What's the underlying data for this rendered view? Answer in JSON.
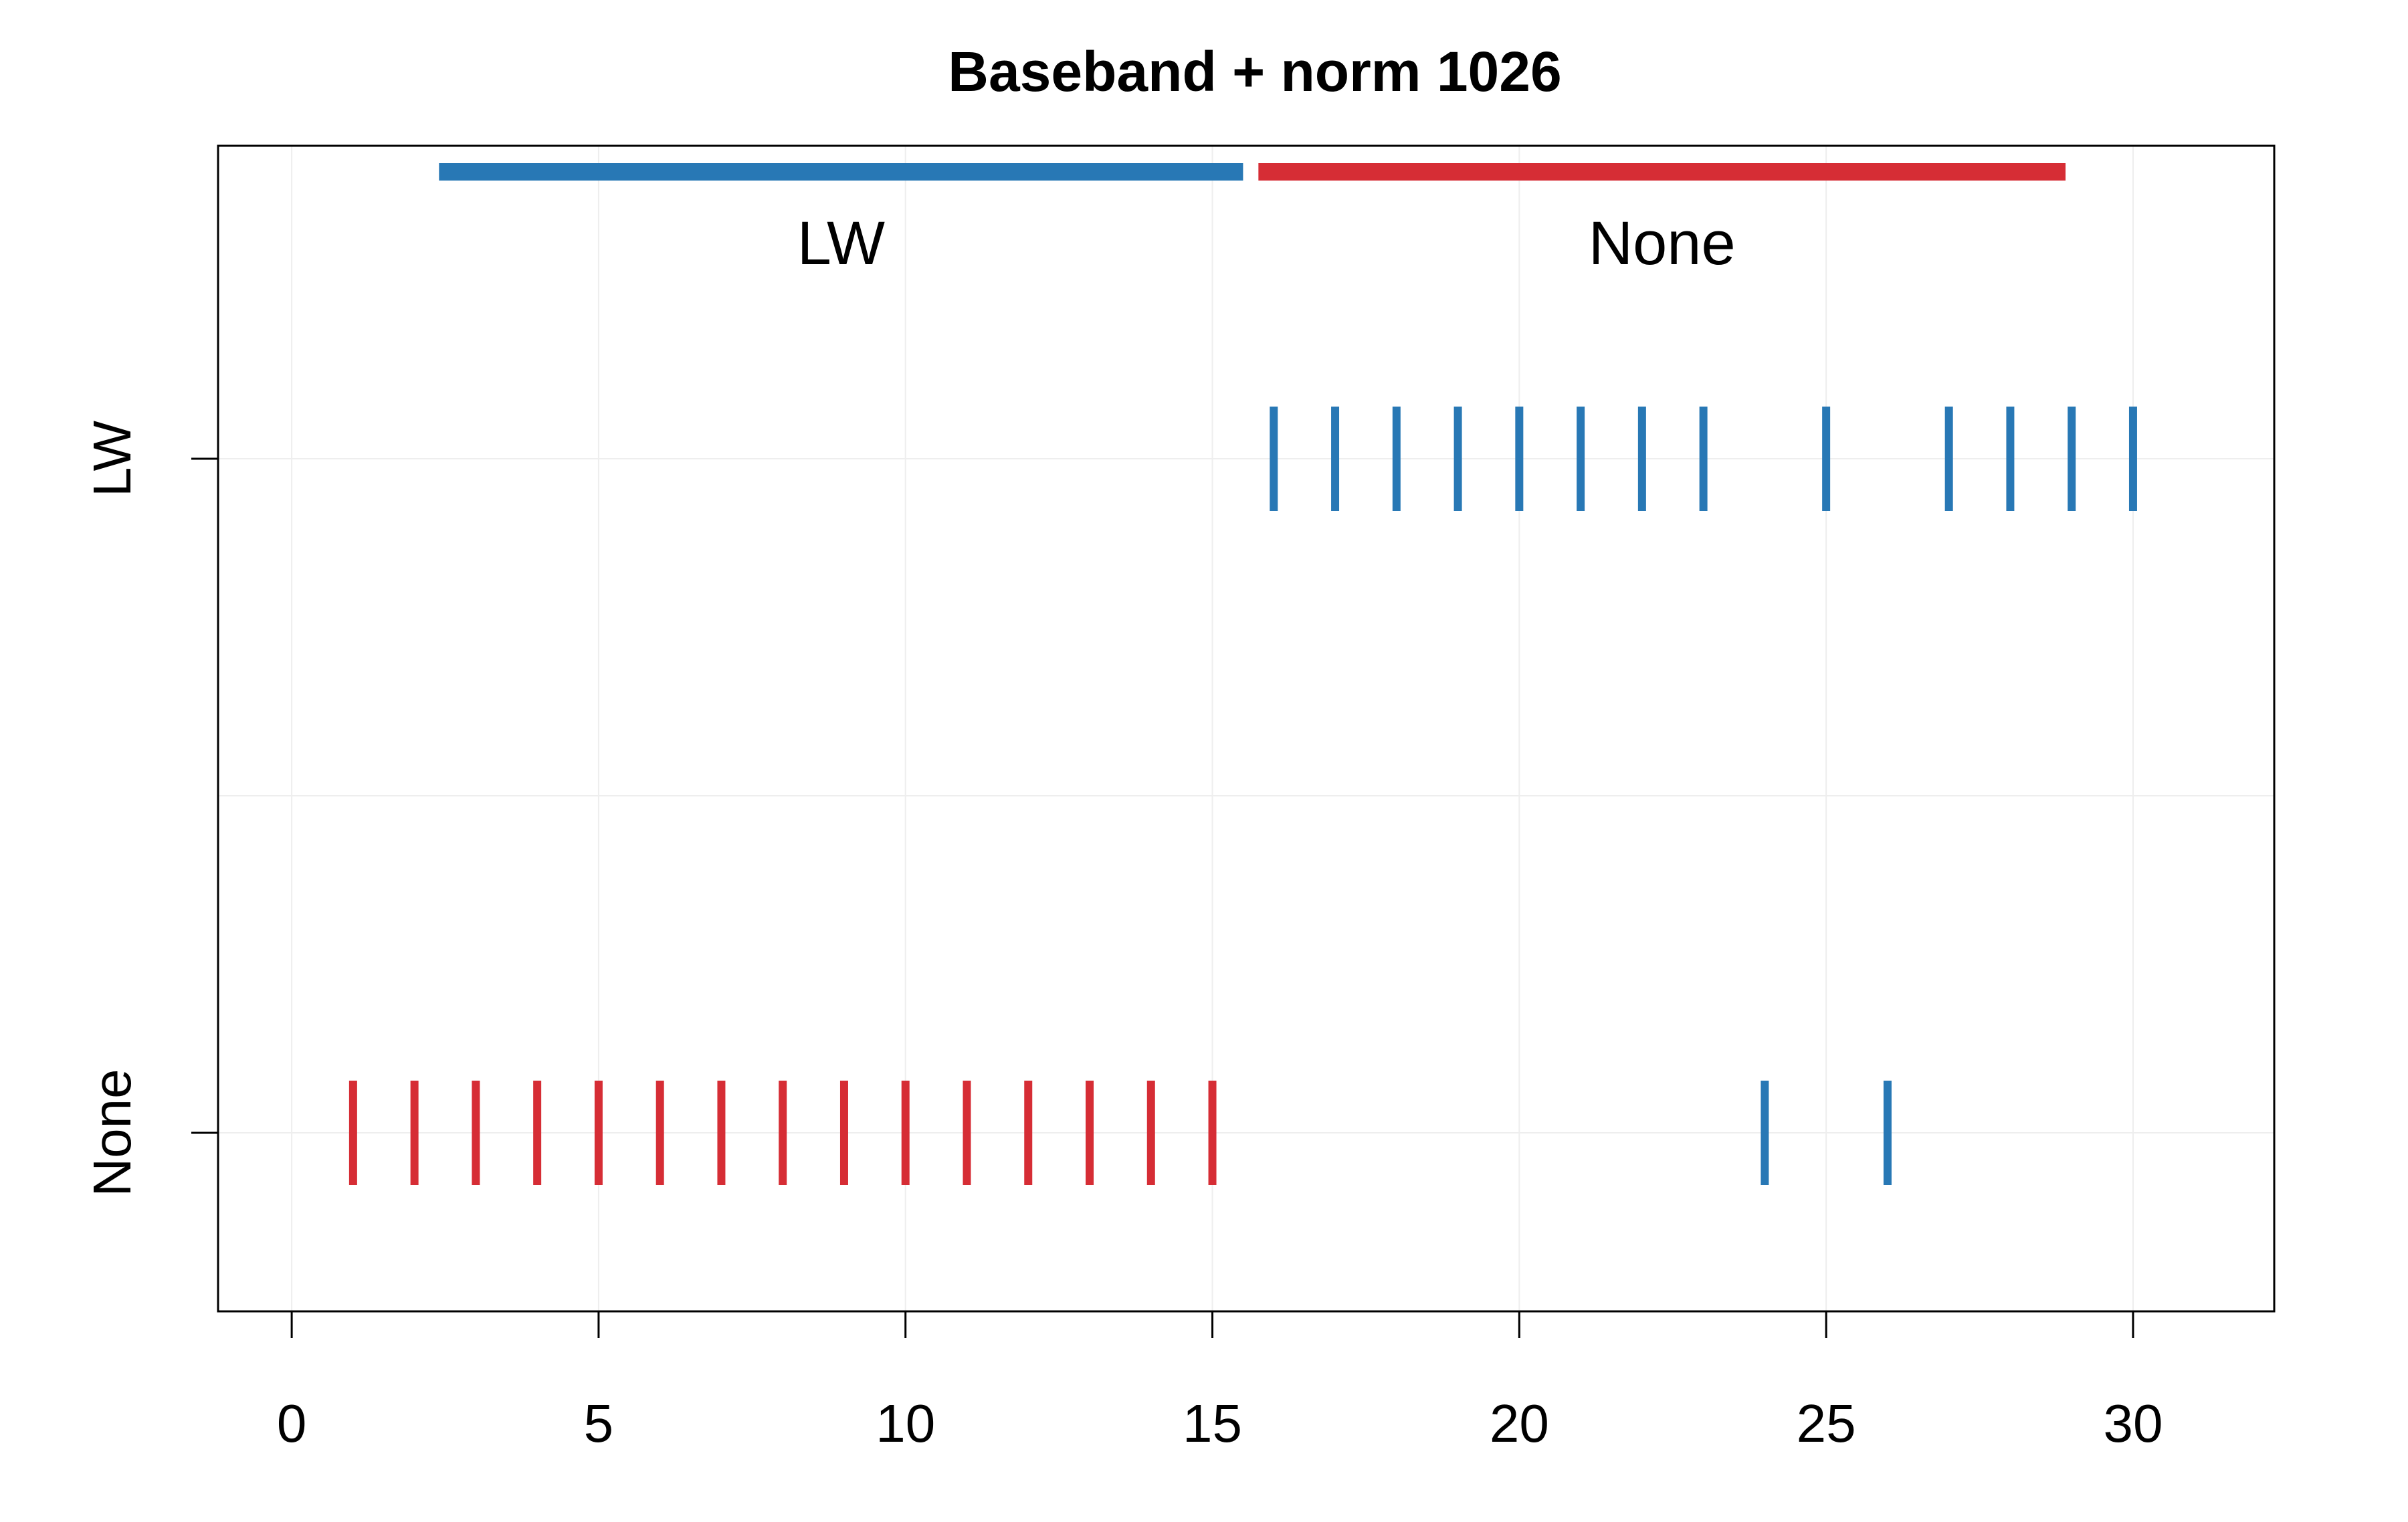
{
  "chart_data": {
    "type": "strip",
    "title": "Baseband + norm 1026",
    "xlabel": "",
    "ylabel": "",
    "xlim": [
      -1.2,
      32.3
    ],
    "x_ticks": [
      0,
      5,
      10,
      15,
      20,
      25,
      30
    ],
    "y_categories": [
      "LW",
      "None"
    ],
    "grid": true,
    "colors": {
      "LW": "#2878b5",
      "None": "#d62d35"
    },
    "groups": [
      {
        "label": "LW",
        "start": 2.4,
        "end": 15.5,
        "color": "#2878b5"
      },
      {
        "label": "None",
        "start": 15.75,
        "end": 28.9,
        "color": "#d62d35"
      }
    ],
    "series": [
      {
        "y": "None",
        "color": "#d62d35",
        "x": [
          1,
          2,
          3,
          4,
          5,
          6,
          7,
          8,
          9,
          10,
          11,
          12,
          13,
          14,
          15
        ]
      },
      {
        "y": "LW",
        "color": "#2878b5",
        "x": [
          16,
          17,
          18,
          19,
          20,
          21,
          22,
          23,
          25,
          27,
          28,
          29,
          30
        ]
      },
      {
        "y": "None",
        "color": "#2878b5",
        "x": [
          24,
          26
        ]
      }
    ]
  }
}
